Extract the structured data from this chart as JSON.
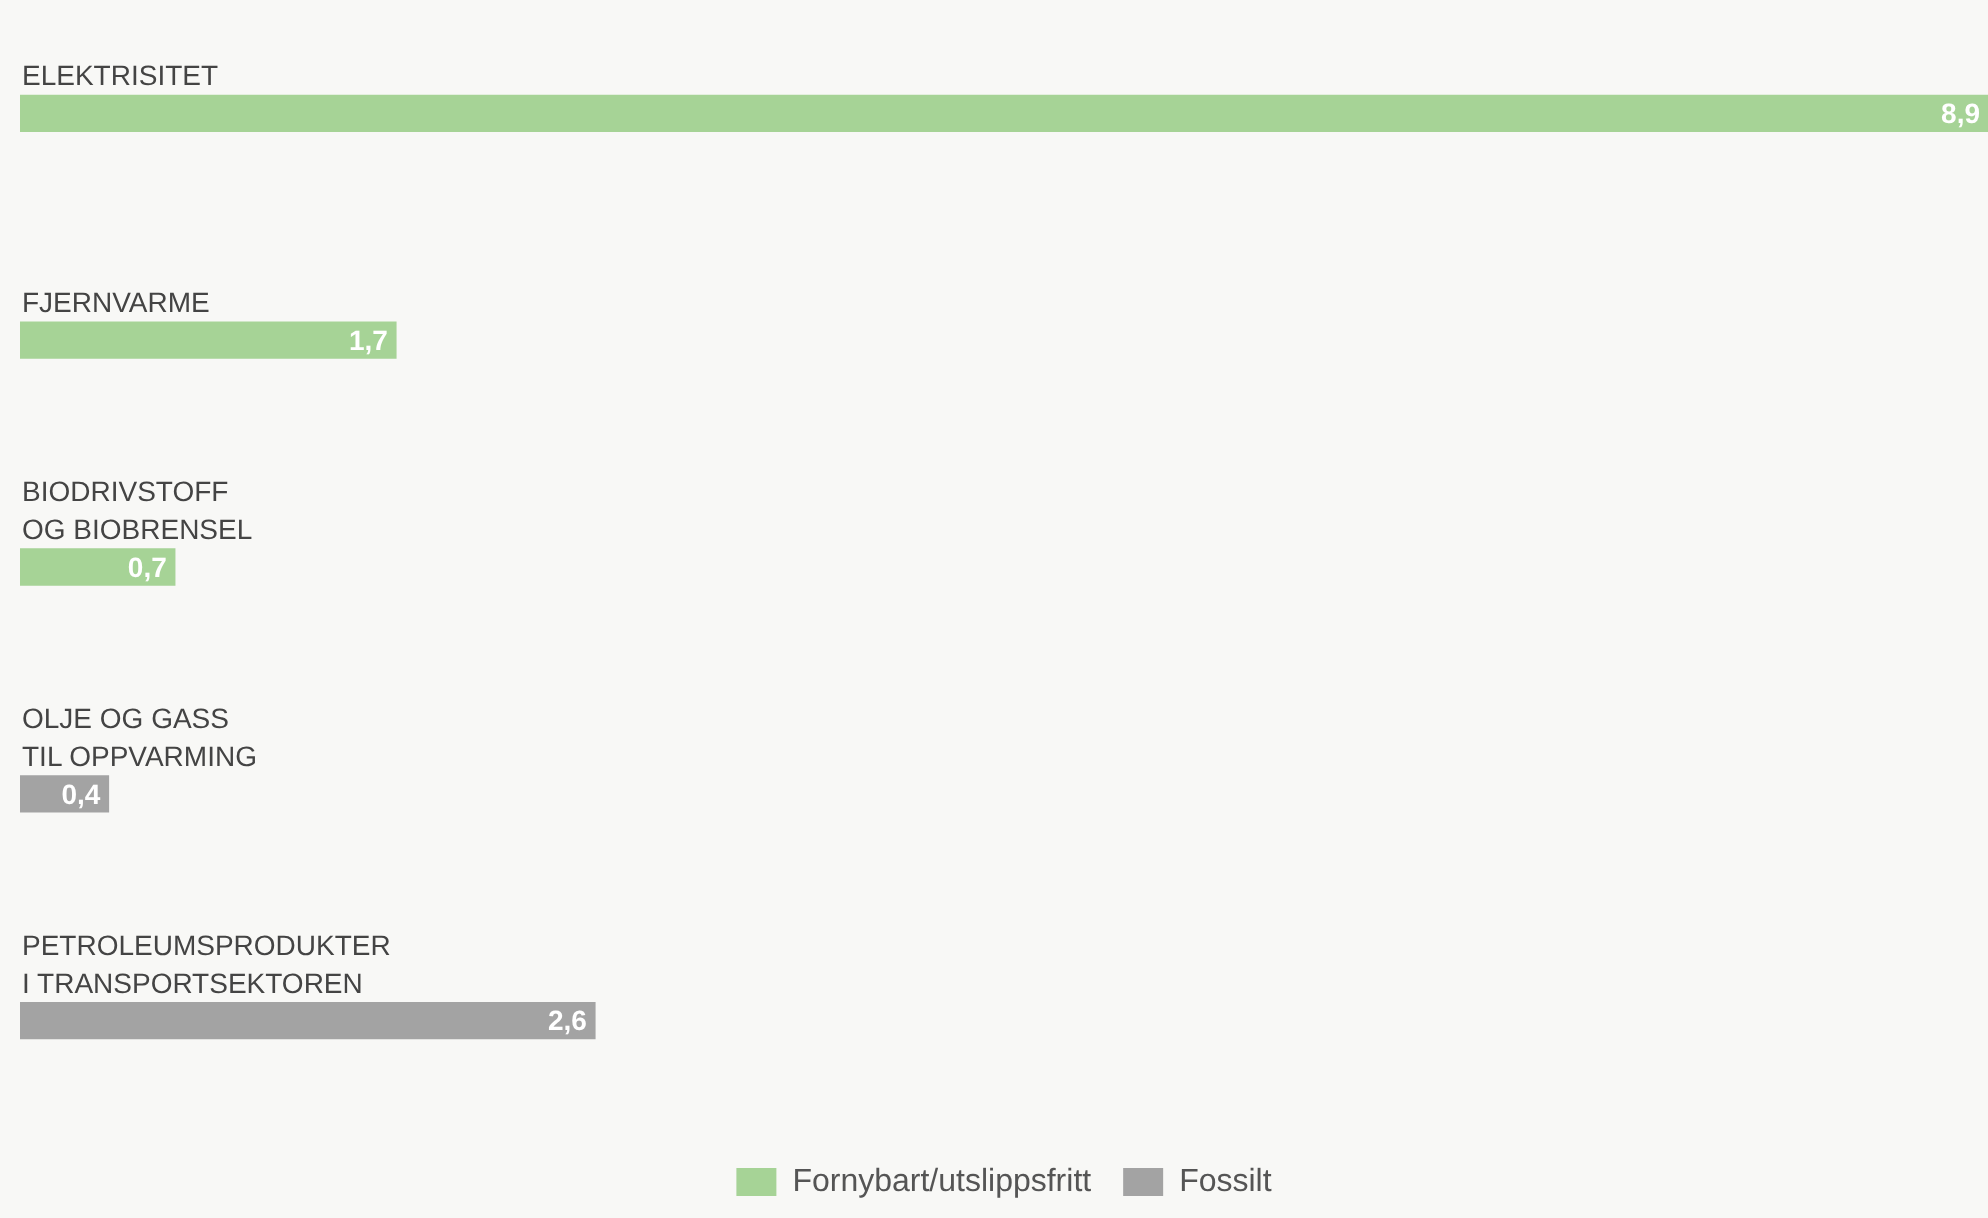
{
  "chart_data": {
    "type": "bar",
    "orientation": "horizontal",
    "stacked": true,
    "legend": "bottom",
    "categories": [
      "ELEKTRISITET",
      "FJERNVARME",
      "BIODRIVSTOFF\nOG BIOBRENSEL",
      "OLJE OG GASS\nTIL OPPVARMING",
      "PETROLEUMSPRODUKTER\nI TRANSPORTSEKTOREN"
    ],
    "series": [
      {
        "name": "Fornybart/utslippsfritt",
        "color": "#a6d396",
        "values": [
          8.9,
          1.7,
          0.7,
          null,
          null
        ],
        "value_labels": [
          "8,9",
          "1,7",
          "0,7",
          null,
          null
        ]
      },
      {
        "name": "Fossilt",
        "color": "#a3a3a3",
        "values": [
          null,
          null,
          null,
          0.4,
          2.6
        ],
        "value_labels": [
          null,
          null,
          null,
          "0,4",
          "2,6"
        ]
      }
    ]
  }
}
